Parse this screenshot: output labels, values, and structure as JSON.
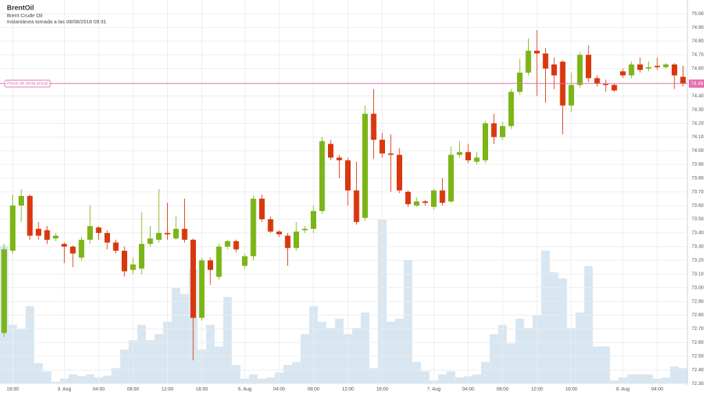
{
  "chart_data": {
    "type": "candlestick",
    "title": "BrentOil",
    "subtitle": "Brent Crude Oil",
    "note": "Instantánea tomada a las 08/08/2018 09:31",
    "categories": [
      null,
      "16:00",
      null,
      null,
      null,
      null,
      null,
      "3. Aug",
      null,
      null,
      null,
      "04:00",
      null,
      null,
      null,
      "08:00",
      null,
      null,
      null,
      "12:00",
      null,
      null,
      null,
      "16:00",
      null,
      null,
      null,
      null,
      "6. Aug",
      null,
      null,
      null,
      "04:00",
      null,
      null,
      null,
      "08:00",
      null,
      null,
      null,
      "12:00",
      null,
      null,
      null,
      "16:00",
      null,
      null,
      null,
      null,
      null,
      "7. Aug",
      null,
      null,
      null,
      "04:00",
      null,
      null,
      null,
      "08:00",
      null,
      null,
      null,
      "12:00",
      null,
      null,
      null,
      "16:00",
      null,
      null,
      null,
      null,
      null,
      "8. Aug",
      null,
      null,
      null,
      "04:00",
      null,
      null,
      null
    ],
    "open": [
      72.67,
      73.27,
      73.6,
      73.67,
      73.43,
      73.42,
      73.36,
      73.32,
      73.3,
      73.22,
      73.35,
      73.44,
      73.4,
      73.33,
      73.27,
      73.13,
      73.14,
      73.32,
      73.35,
      73.4,
      73.36,
      73.43,
      73.35,
      72.78,
      73.2,
      73.08,
      73.3,
      73.34,
      73.16,
      73.23,
      73.65,
      73.5,
      73.41,
      73.38,
      73.29,
      73.42,
      73.43,
      73.56,
      74.05,
      73.95,
      73.93,
      73.71,
      73.51,
      74.27,
      74.08,
      73.98,
      73.97,
      73.7,
      73.6,
      73.63,
      73.59,
      73.71,
      73.63,
      73.97,
      73.99,
      73.92,
      73.93,
      74.2,
      74.1,
      74.18,
      74.43,
      74.57,
      74.73,
      74.71,
      74.63,
      74.65,
      74.33,
      74.48,
      74.7,
      74.53,
      74.49,
      74.48,
      74.58,
      74.55,
      74.63,
      74.6,
      74.62,
      74.61,
      74.63,
      74.54
    ],
    "high": [
      73.32,
      73.68,
      73.72,
      73.68,
      73.48,
      73.45,
      73.4,
      73.33,
      73.31,
      73.37,
      73.6,
      73.45,
      73.42,
      73.35,
      73.3,
      73.22,
      73.55,
      73.45,
      73.72,
      73.62,
      73.52,
      73.65,
      73.36,
      73.22,
      73.22,
      73.32,
      73.35,
      73.35,
      73.25,
      73.67,
      73.68,
      73.52,
      73.42,
      73.4,
      73.48,
      73.45,
      73.6,
      74.1,
      74.08,
      73.97,
      73.95,
      73.92,
      74.33,
      74.45,
      74.13,
      74.12,
      74.02,
      73.71,
      73.66,
      73.64,
      73.72,
      73.8,
      74.03,
      74.07,
      74.05,
      73.99,
      74.22,
      74.27,
      74.21,
      74.45,
      74.67,
      74.82,
      74.88,
      74.75,
      74.68,
      74.66,
      74.57,
      74.72,
      74.77,
      74.55,
      74.52,
      74.49,
      74.6,
      74.65,
      74.68,
      74.65,
      74.68,
      74.64,
      74.64,
      74.62
    ],
    "low": [
      72.64,
      73.25,
      73.48,
      73.35,
      73.35,
      73.32,
      73.34,
      73.18,
      73.15,
      73.2,
      73.32,
      73.35,
      73.28,
      73.25,
      73.08,
      73.1,
      73.1,
      73.3,
      73.33,
      73.35,
      73.35,
      73.33,
      72.47,
      72.76,
      73.02,
      73.06,
      73.28,
      73.26,
      73.14,
      73.2,
      73.48,
      73.4,
      73.37,
      73.16,
      73.27,
      73.4,
      73.4,
      73.54,
      73.93,
      73.8,
      73.6,
      73.46,
      73.49,
      73.94,
      73.95,
      73.7,
      73.69,
      73.59,
      73.59,
      73.6,
      73.57,
      73.6,
      73.62,
      73.95,
      73.91,
      73.9,
      73.91,
      74.05,
      74.08,
      74.16,
      74.41,
      74.55,
      74.4,
      74.35,
      74.45,
      74.12,
      74.28,
      74.46,
      74.5,
      74.47,
      74.43,
      74.43,
      74.53,
      74.53,
      74.57,
      74.58,
      74.59,
      74.6,
      74.45,
      74.47
    ],
    "close": [
      73.28,
      73.6,
      73.67,
      73.38,
      73.38,
      73.35,
      73.38,
      73.3,
      73.25,
      73.35,
      73.45,
      73.4,
      73.33,
      73.27,
      73.12,
      73.17,
      73.32,
      73.36,
      73.4,
      73.39,
      73.43,
      73.35,
      72.78,
      73.2,
      73.13,
      73.3,
      73.34,
      73.28,
      73.23,
      73.65,
      73.5,
      73.41,
      73.39,
      73.29,
      73.41,
      73.43,
      73.56,
      74.07,
      73.95,
      73.93,
      73.71,
      73.48,
      74.27,
      74.08,
      73.98,
      73.97,
      73.71,
      73.61,
      73.63,
      73.62,
      73.71,
      73.62,
      73.97,
      73.99,
      73.93,
      73.95,
      74.2,
      74.1,
      74.18,
      74.43,
      74.57,
      74.73,
      74.71,
      74.6,
      74.55,
      74.33,
      74.48,
      74.7,
      74.53,
      74.49,
      74.48,
      74.44,
      74.55,
      74.63,
      74.59,
      74.61,
      74.61,
      74.63,
      74.55,
      74.49
    ],
    "volume": [
      223,
      95,
      88,
      125,
      33,
      20,
      3,
      8,
      15,
      12,
      15,
      10,
      13,
      25,
      55,
      70,
      95,
      70,
      80,
      100,
      155,
      145,
      185,
      55,
      95,
      60,
      140,
      30,
      8,
      15,
      8,
      10,
      18,
      30,
      35,
      80,
      125,
      100,
      90,
      105,
      80,
      90,
      115,
      25,
      265,
      100,
      105,
      200,
      35,
      20,
      5,
      15,
      20,
      10,
      12,
      15,
      35,
      80,
      95,
      65,
      105,
      90,
      110,
      215,
      180,
      170,
      90,
      115,
      190,
      60,
      60,
      5,
      10,
      15,
      15,
      15,
      8,
      10,
      28,
      25
    ],
    "up_color": "#7cb518",
    "down_color": "#d9380f",
    "volume_color": "#d8e6f1",
    "ylim": [
      72.3,
      75.0
    ],
    "yticks": [
      {
        "value": 72.3,
        "label": "72.30"
      },
      {
        "value": 72.4,
        "label": "72.40"
      },
      {
        "value": 72.5,
        "label": "72.50"
      },
      {
        "value": 72.6,
        "label": "72.60"
      },
      {
        "value": 72.7,
        "label": "72.70"
      },
      {
        "value": 72.8,
        "label": "72.80"
      },
      {
        "value": 72.9,
        "label": "72.90"
      },
      {
        "value": 73.0,
        "label": "73.00"
      },
      {
        "value": 73.1,
        "label": "73.10"
      },
      {
        "value": 73.2,
        "label": "73.20"
      },
      {
        "value": 73.3,
        "label": "73.30"
      },
      {
        "value": 73.4,
        "label": "73.40"
      },
      {
        "value": 73.5,
        "label": "73.50"
      },
      {
        "value": 73.6,
        "label": "73.60"
      },
      {
        "value": 73.7,
        "label": "73.70"
      },
      {
        "value": 73.8,
        "label": "73.80"
      },
      {
        "value": 73.9,
        "label": "73.90"
      },
      {
        "value": 74.0,
        "label": "74.00"
      },
      {
        "value": 74.1,
        "label": "74.10"
      },
      {
        "value": 74.2,
        "label": "74.20"
      },
      {
        "value": 74.3,
        "label": "74.30"
      },
      {
        "value": 74.4,
        "label": "74.40"
      },
      {
        "value": 74.5,
        "label": "74.50"
      },
      {
        "value": 74.6,
        "label": "74.60"
      },
      {
        "value": 74.7,
        "label": "74.70"
      },
      {
        "value": 74.8,
        "label": "74.80"
      },
      {
        "value": 74.9,
        "label": "74.90"
      },
      {
        "value": 75.0,
        "label": "75.00"
      }
    ],
    "grid": true,
    "current_price": {
      "label": "Precio de venta actual",
      "value": 74.49,
      "color": "#e36fae"
    }
  }
}
